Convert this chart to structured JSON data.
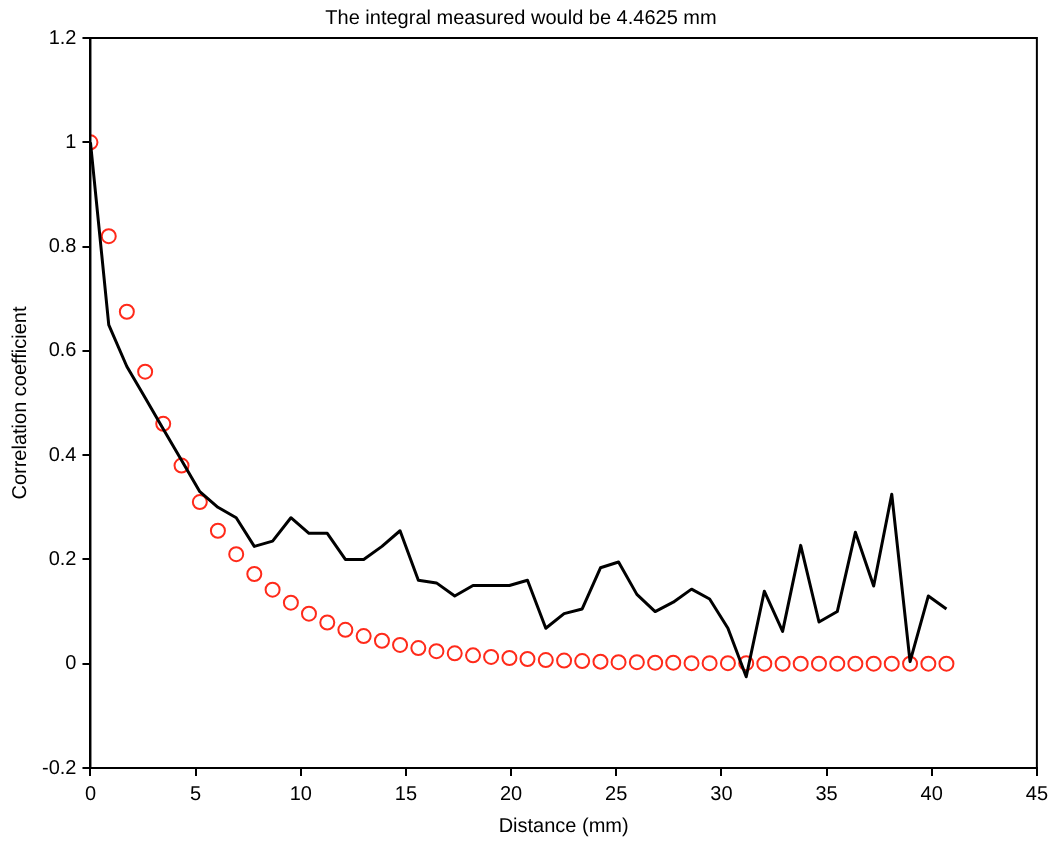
{
  "chart_data": {
    "type": "line",
    "title": "The integral measured would be 4.4625 mm",
    "xlabel": "Distance (mm)",
    "ylabel": "Correlation coefficient",
    "x": [
      0,
      0.87,
      1.73,
      2.6,
      3.46,
      4.33,
      5.2,
      6.06,
      6.93,
      7.79,
      8.66,
      9.53,
      10.39,
      11.26,
      12.12,
      12.99,
      13.86,
      14.72,
      15.59,
      16.45,
      17.32,
      18.19,
      19.05,
      19.92,
      20.78,
      21.65,
      22.52,
      23.38,
      24.25,
      25.11,
      25.98,
      26.85,
      27.71,
      28.58,
      29.44,
      30.31,
      31.18,
      32.04,
      32.91,
      33.77,
      34.64,
      35.51,
      36.37,
      37.24,
      38.1,
      38.97,
      39.84,
      40.7
    ],
    "series": [
      {
        "color": "#000000",
        "marker": "none",
        "values": [
          1.0,
          0.65,
          0.57,
          0.51,
          0.45,
          0.39,
          0.33,
          0.3,
          0.28,
          0.225,
          0.235,
          0.28,
          0.25,
          0.25,
          0.2,
          0.2,
          0.225,
          0.255,
          0.16,
          0.155,
          0.13,
          0.15,
          0.15,
          0.15,
          0.16,
          0.068,
          0.096,
          0.105,
          0.184,
          0.195,
          0.133,
          0.1,
          0.118,
          0.143,
          0.124,
          0.068,
          -0.025,
          0.139,
          0.062,
          0.227,
          0.08,
          0.1,
          0.252,
          0.149,
          0.325,
          0.004,
          0.13,
          0.105
        ]
      },
      {
        "type": "scatter",
        "color": "#ff2a1a",
        "marker": "circle",
        "values": [
          1,
          0.82,
          0.675,
          0.56,
          0.46,
          0.38,
          0.31,
          0.255,
          0.21,
          0.172,
          0.142,
          0.117,
          0.096,
          0.079,
          0.065,
          0.053,
          0.044,
          0.036,
          0.03,
          0.024,
          0.02,
          0.016,
          0.013,
          0.011,
          0.009,
          0.007,
          0.006,
          0.005,
          0.004,
          0.003,
          0.003,
          0.002,
          0.002,
          0.001,
          0.001,
          0.001,
          0.001,
          0,
          0,
          0,
          0,
          0,
          0,
          0,
          0,
          0,
          0,
          0
        ]
      }
    ],
    "xlim": [
      0,
      45
    ],
    "xticks": [
      0,
      5,
      10,
      15,
      20,
      25,
      30,
      35,
      40,
      45
    ],
    "ylim": [
      -0.2,
      1.2
    ],
    "yticks": [
      -0.2,
      0,
      0.2,
      0.4,
      0.6,
      0.8,
      1,
      1.2
    ]
  }
}
